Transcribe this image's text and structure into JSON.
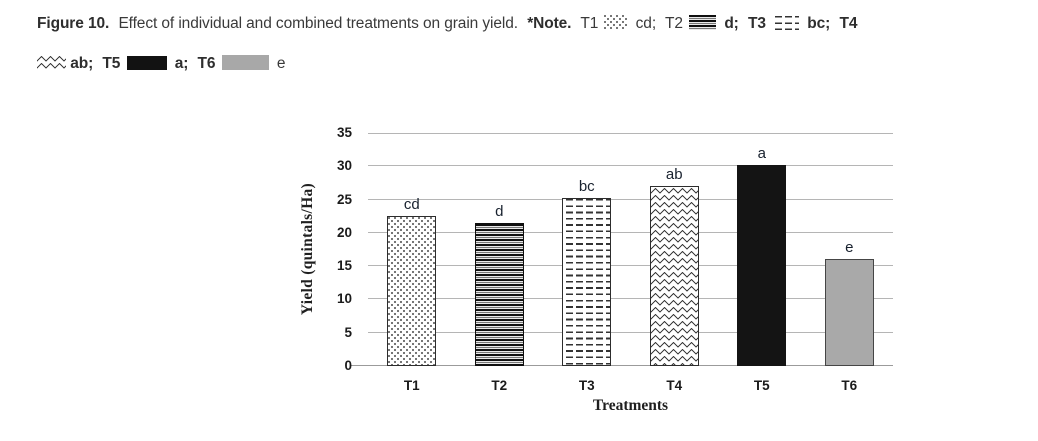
{
  "caption": {
    "fig_bold": "Figure 10.",
    "fig_rest": "Effect of individual and combined treatments on grain yield.",
    "note_bold": "*Note.",
    "t1_label": "T1",
    "t1_sig": "cd;",
    "t2_label": "T2",
    "t2_sig": "d;",
    "t3_label": "T3",
    "t3_sig": "bc;",
    "t4_label": "T4",
    "t4_sig": "ab;",
    "t5_label": "T5",
    "t5_sig": "a;",
    "t6_label": "T6",
    "t6_sig": "e"
  },
  "chart_data": {
    "type": "bar",
    "title": "",
    "categories": [
      "T1",
      "T2",
      "T3",
      "T4",
      "T5",
      "T6"
    ],
    "values": [
      22.5,
      21.5,
      25.2,
      27,
      30.2,
      16
    ],
    "sig_labels": [
      "cd",
      "d",
      "bc",
      "ab",
      "a",
      "e"
    ],
    "patterns": [
      "dots",
      "hlines",
      "dashes",
      "zigzag",
      "solid-black",
      "solid-gray"
    ],
    "xlabel": "Treatments",
    "ylabel": "Yield  (quintals/Ha)",
    "ylim": [
      0,
      35
    ],
    "ytick_step": 5,
    "grid": true,
    "legend_position": "none",
    "colors": {
      "solid_black_bar": "#141414",
      "solid_gray_bar": "#a9a9a9",
      "gridline": "#b5b5b5",
      "tick_label": "#1b1b1b",
      "sig_label": "#18212e"
    }
  }
}
